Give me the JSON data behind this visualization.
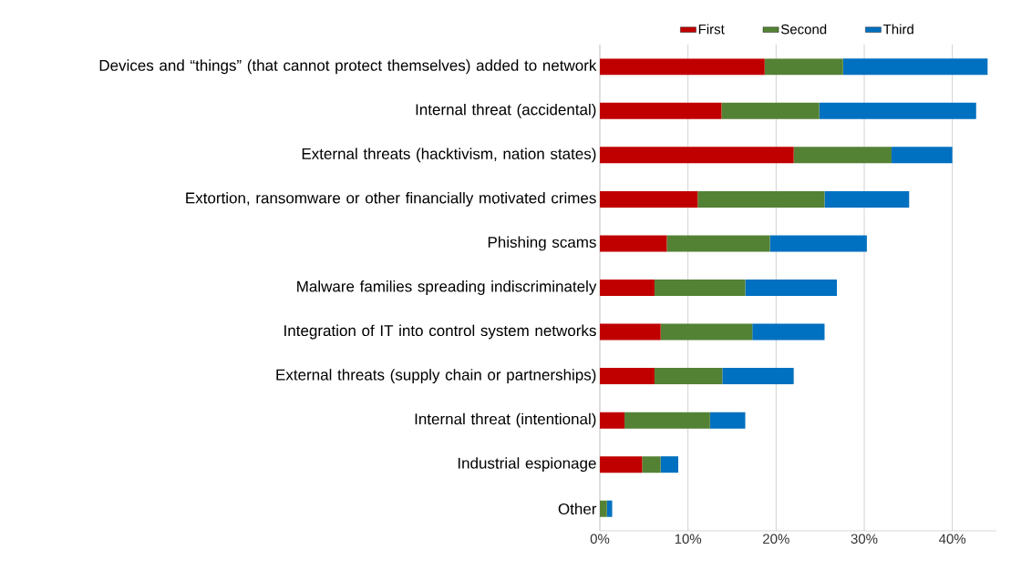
{
  "chart_data": {
    "type": "bar",
    "orientation": "horizontal",
    "stacked": true,
    "categories": [
      "Devices and “things” (that cannot protect themselves) added to network",
      "Internal threat (accidental)",
      "External threats (hacktivism, nation states)",
      "Extortion, ransomware or other financially motivated crimes",
      "Phishing scams",
      "Malware families spreading indiscriminately",
      "Integration of IT into control system networks",
      "External threats (supply chain or partnerships)",
      "Internal threat (intentional)",
      "Industrial espionage",
      "Other"
    ],
    "series": [
      {
        "name": "First",
        "color": "#c00000",
        "values": [
          18.7,
          13.8,
          22.0,
          11.1,
          7.6,
          6.2,
          6.9,
          6.2,
          2.8,
          4.8,
          0
        ]
      },
      {
        "name": "Second",
        "color": "#548235",
        "values": [
          8.9,
          11.1,
          11.1,
          14.4,
          11.7,
          10.3,
          10.4,
          7.7,
          9.7,
          2.1,
          0.8
        ]
      },
      {
        "name": "Third",
        "color": "#0070c0",
        "values": [
          16.4,
          17.8,
          6.9,
          9.6,
          11.0,
          10.4,
          8.2,
          8.1,
          4.0,
          2.0,
          0.6
        ]
      }
    ],
    "xlim": [
      0,
      45
    ],
    "xticks": [
      {
        "value": 0,
        "label": "0%"
      },
      {
        "value": 10,
        "label": "10%"
      },
      {
        "value": 20,
        "label": "20%"
      },
      {
        "value": 30,
        "label": "30%"
      },
      {
        "value": 40,
        "label": "40%"
      }
    ],
    "grid": "x",
    "legend": "top"
  }
}
